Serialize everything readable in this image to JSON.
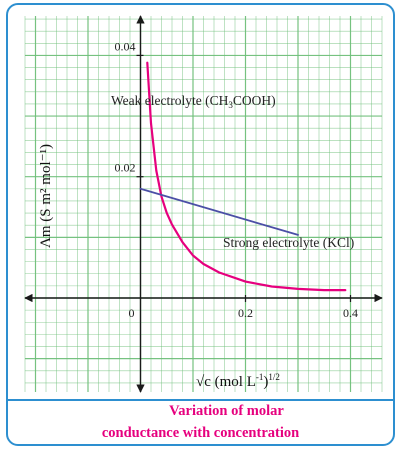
{
  "chart_data": {
    "type": "line",
    "xlabel": "√c (mol L⁻¹)^1/2",
    "xlabel_main": "√c (mol L",
    "xlabel_exp": "-1",
    "xlabel_close": ")",
    "xlabel_pow": "1/2",
    "ylabel": "Λm (S m² mol⁻¹)",
    "xlim": [
      -0.22,
      0.46
    ],
    "ylim": [
      -0.0155,
      0.0465
    ],
    "x_ticks": [
      {
        "value": 0,
        "label": "0"
      },
      {
        "value": 0.2,
        "label": "0.2"
      },
      {
        "value": 0.4,
        "label": "0.4"
      }
    ],
    "y_ticks": [
      {
        "value": 0.02,
        "label": "0.02"
      },
      {
        "value": 0.04,
        "label": "0.04"
      }
    ],
    "grid": true,
    "series": [
      {
        "name": "Weak electrolyte (CH3COOH)",
        "color": "#e6007e",
        "x": [
          0.013,
          0.02,
          0.03,
          0.04,
          0.05,
          0.06,
          0.08,
          0.1,
          0.12,
          0.15,
          0.2,
          0.25,
          0.3,
          0.35,
          0.39
        ],
        "y": [
          0.0388,
          0.0288,
          0.021,
          0.0167,
          0.014,
          0.0121,
          0.0092,
          0.007,
          0.0056,
          0.0042,
          0.0027,
          0.0019,
          0.0015,
          0.0013,
          0.0013
        ]
      },
      {
        "name": "Strong electrolyte (KCl)",
        "color": "#4b4fa6",
        "x": [
          0.0,
          0.3
        ],
        "y": [
          0.018,
          0.0104
        ]
      }
    ],
    "annotations": [
      {
        "text": "Weak electrolyte (CH",
        "sub": "3",
        "tail": "COOH)",
        "series": 0
      },
      {
        "text": "Strong electrolyte (KCl)",
        "series": 1
      }
    ]
  },
  "caption": {
    "line1": "Variation of molar",
    "line2": "conductance with concentration"
  },
  "colors": {
    "grid": "#6fbf7a",
    "axis": "#1a1a1a",
    "frame": "#2d8fd0",
    "caption": "#e6007e"
  }
}
